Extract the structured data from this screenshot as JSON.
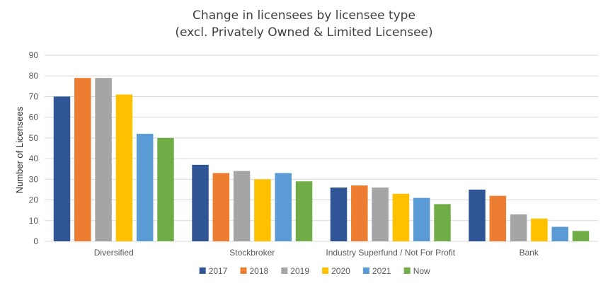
{
  "chart_data": {
    "type": "bar",
    "title": "Change in licensees by licensee type",
    "subtitle": "(excl. Privately Owned & Limited Licensee)",
    "xlabel": "",
    "ylabel": "Number of Licensees",
    "ylim": [
      0,
      90
    ],
    "yticks": [
      "0",
      "10",
      "20",
      "30",
      "40",
      "50",
      "60",
      "70",
      "80",
      "90"
    ],
    "grid": true,
    "legend_position": "bottom",
    "categories": [
      "Diversified",
      "Stockbroker",
      "Industry Superfund / Not For Profit",
      "Bank"
    ],
    "series": [
      {
        "name": "2017",
        "color": "#2F5597",
        "values": [
          70,
          37,
          26,
          25
        ]
      },
      {
        "name": "2018",
        "color": "#ED7D31",
        "values": [
          79,
          33,
          27,
          22
        ]
      },
      {
        "name": "2019",
        "color": "#A5A5A5",
        "values": [
          79,
          34,
          26,
          13
        ]
      },
      {
        "name": "2020",
        "color": "#FFC000",
        "values": [
          71,
          30,
          23,
          11
        ]
      },
      {
        "name": "2021",
        "color": "#5B9BD5",
        "values": [
          52,
          33,
          21,
          7
        ]
      },
      {
        "name": "Now",
        "color": "#70AD47",
        "values": [
          50,
          29,
          18,
          5
        ]
      }
    ]
  }
}
